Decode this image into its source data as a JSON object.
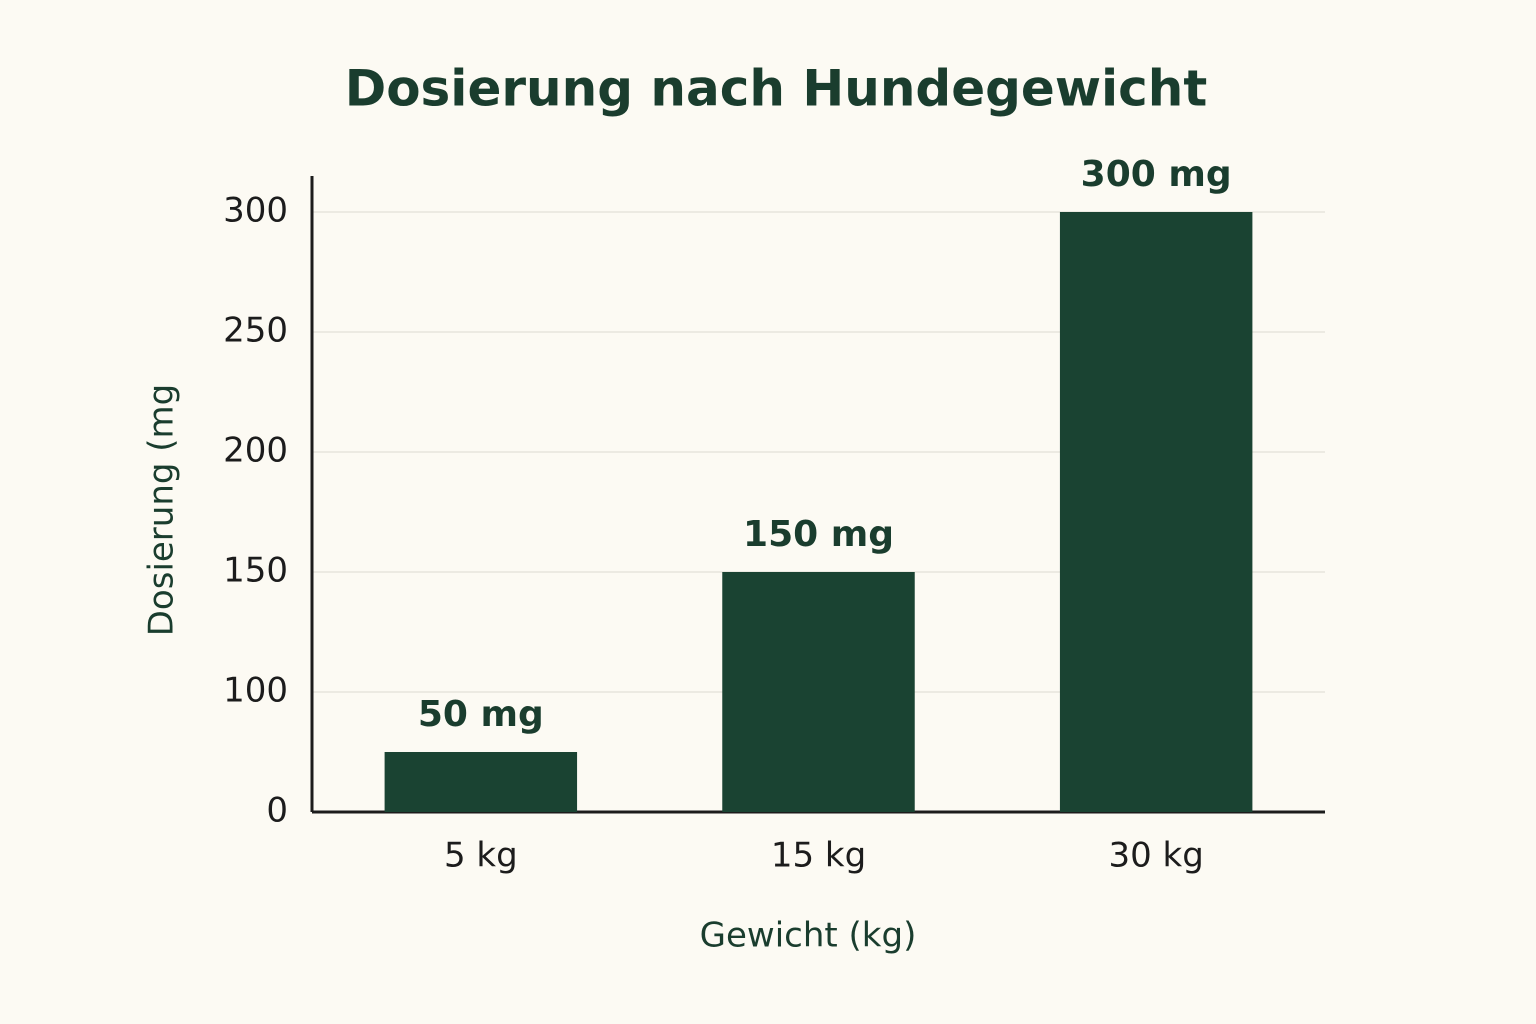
{
  "chart_data": {
    "type": "bar",
    "title": "Dosierung nach Hundegewicht",
    "x_label": "Gewicht (kg)",
    "y_label": "Dosierung (mg",
    "categories": [
      "5 kg",
      "15 kg",
      "30 kg"
    ],
    "values": [
      50,
      150,
      300
    ],
    "value_labels": [
      "50 mg",
      "150 mg",
      "300 mg"
    ],
    "color": "#1a4332",
    "ylim": [
      0,
      315
    ],
    "yticks": [
      0,
      100,
      150,
      200,
      250,
      300
    ],
    "grid": true
  }
}
